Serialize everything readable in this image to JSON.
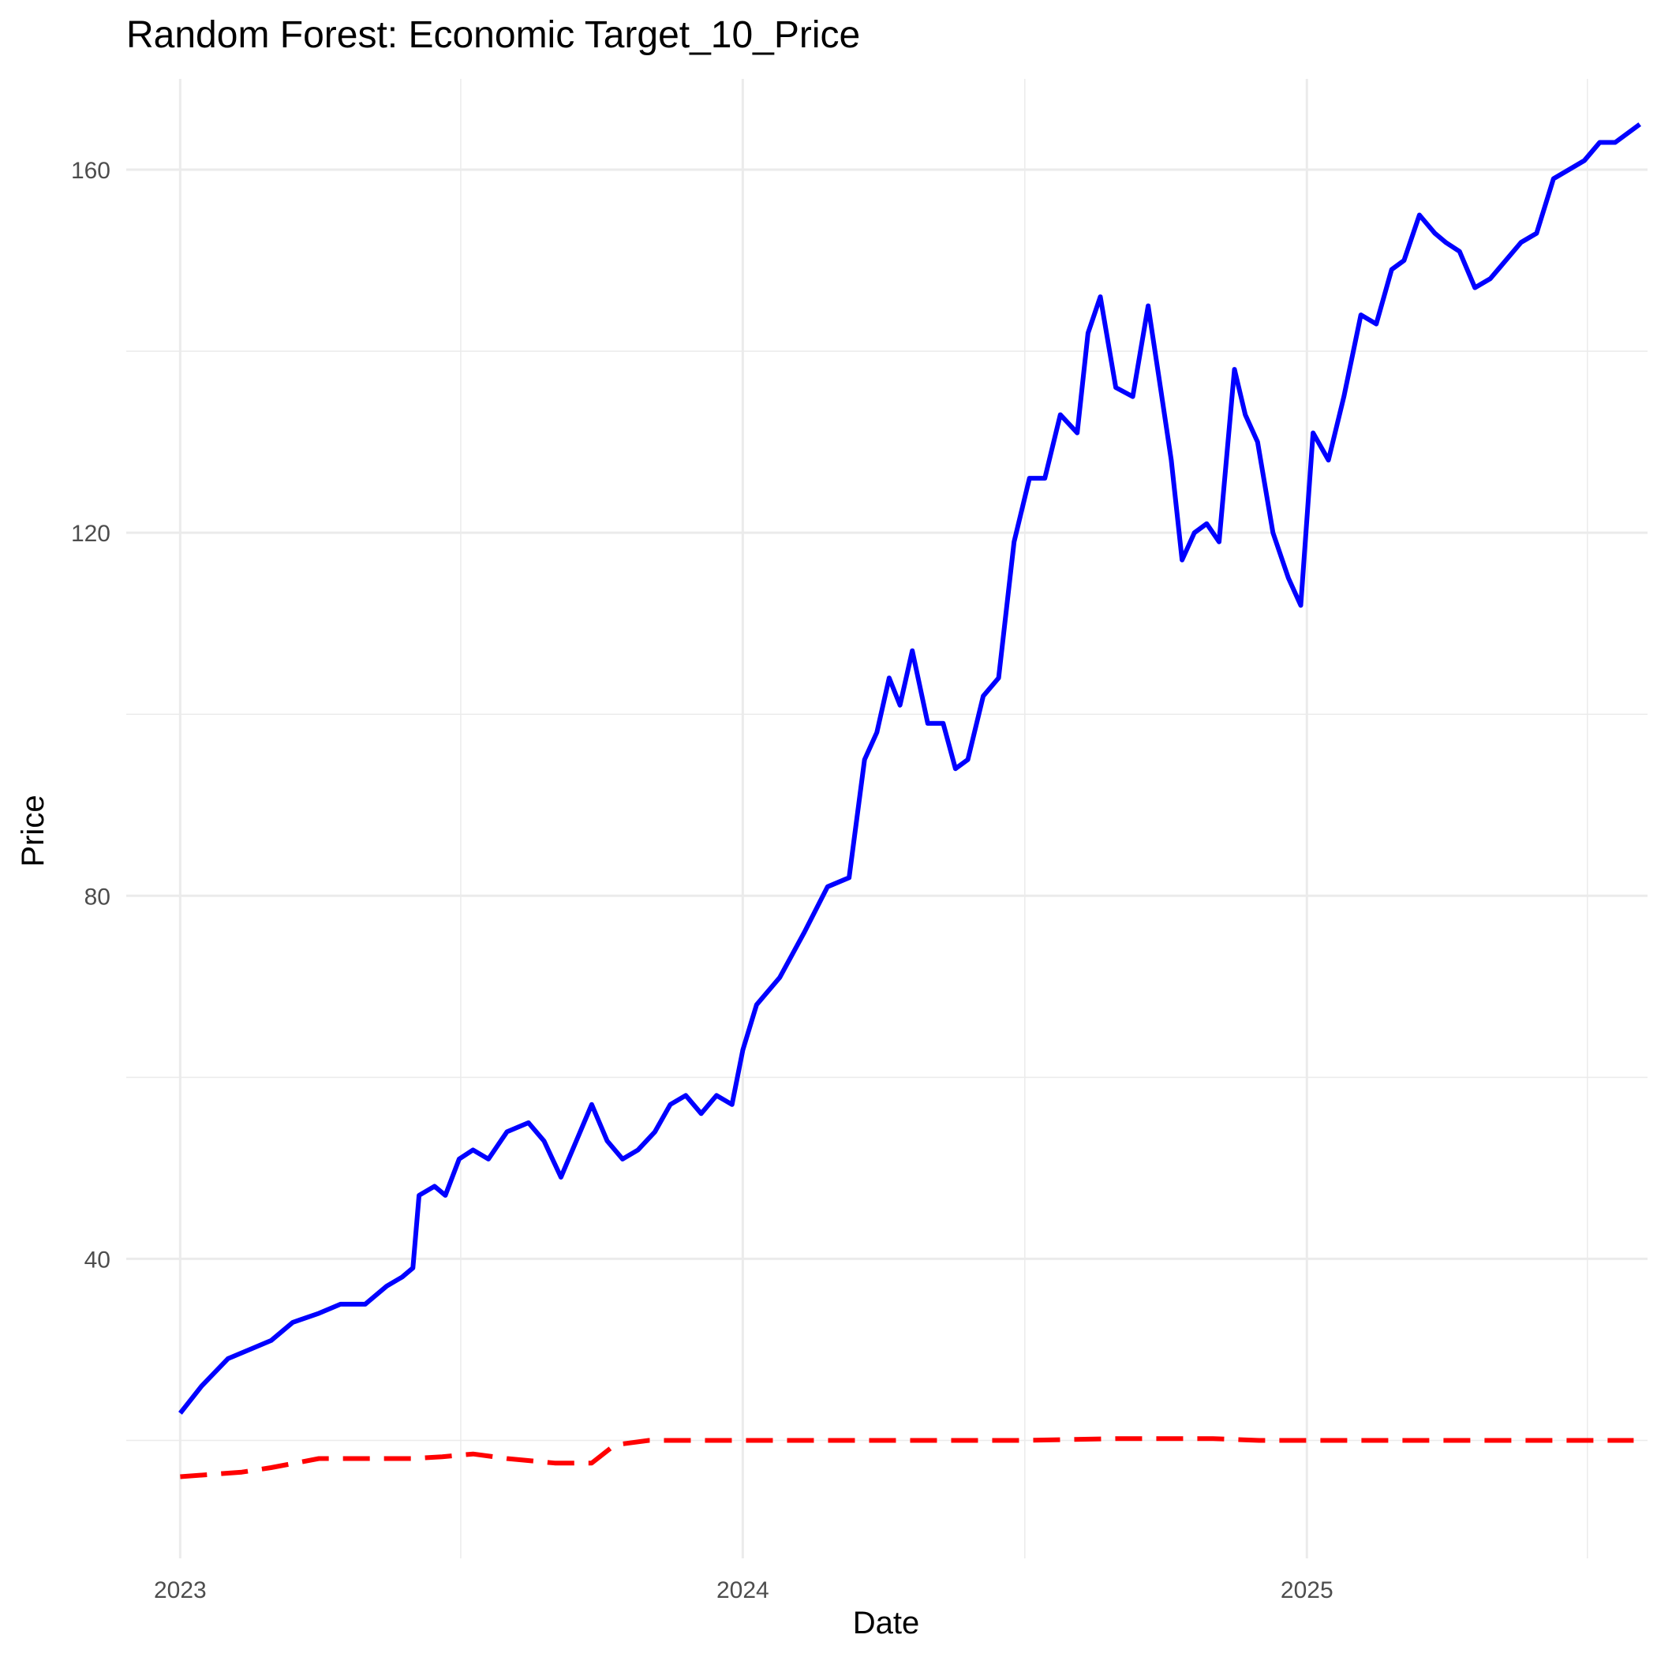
{
  "chart_data": {
    "type": "line",
    "title": "Random Forest: Economic Target_10_Price",
    "xlabel": "Date",
    "ylabel": "Price",
    "x_ticks": [
      "2023",
      "2024",
      "2025"
    ],
    "y_ticks": [
      40,
      80,
      120,
      160
    ],
    "xlim": [
      "2022-11-27",
      "2025-08-10"
    ],
    "ylim": [
      7,
      170
    ],
    "grid": true,
    "legend": "none",
    "series": [
      {
        "color": "#0000ff",
        "style": "solid",
        "points": [
          [
            "2023-01-01",
            23
          ],
          [
            "2023-01-15",
            26
          ],
          [
            "2023-02-01",
            29
          ],
          [
            "2023-02-15",
            30
          ],
          [
            "2023-03-01",
            31
          ],
          [
            "2023-03-15",
            33
          ],
          [
            "2023-04-01",
            34
          ],
          [
            "2023-04-15",
            35
          ],
          [
            "2023-05-01",
            35
          ],
          [
            "2023-05-15",
            37
          ],
          [
            "2023-05-25",
            38
          ],
          [
            "2023-06-01",
            39
          ],
          [
            "2023-06-05",
            47
          ],
          [
            "2023-06-15",
            48
          ],
          [
            "2023-06-22",
            47
          ],
          [
            "2023-07-01",
            51
          ],
          [
            "2023-07-10",
            52
          ],
          [
            "2023-07-20",
            51
          ],
          [
            "2023-08-01",
            54
          ],
          [
            "2023-08-15",
            55
          ],
          [
            "2023-08-25",
            53
          ],
          [
            "2023-09-05",
            49
          ],
          [
            "2023-09-15",
            53
          ],
          [
            "2023-09-25",
            57
          ],
          [
            "2023-10-05",
            53
          ],
          [
            "2023-10-15",
            51
          ],
          [
            "2023-10-25",
            52
          ],
          [
            "2023-11-05",
            54
          ],
          [
            "2023-11-15",
            57
          ],
          [
            "2023-11-25",
            58
          ],
          [
            "2023-12-05",
            56
          ],
          [
            "2023-12-15",
            58
          ],
          [
            "2023-12-25",
            57
          ],
          [
            "2024-01-01",
            63
          ],
          [
            "2024-01-10",
            68
          ],
          [
            "2024-01-25",
            71
          ],
          [
            "2024-02-10",
            76
          ],
          [
            "2024-02-25",
            81
          ],
          [
            "2024-03-10",
            82
          ],
          [
            "2024-03-20",
            95
          ],
          [
            "2024-03-28",
            98
          ],
          [
            "2024-04-05",
            104
          ],
          [
            "2024-04-12",
            101
          ],
          [
            "2024-04-20",
            107
          ],
          [
            "2024-04-30",
            99
          ],
          [
            "2024-05-10",
            99
          ],
          [
            "2024-05-18",
            94
          ],
          [
            "2024-05-26",
            95
          ],
          [
            "2024-06-05",
            102
          ],
          [
            "2024-06-15",
            104
          ],
          [
            "2024-06-25",
            119
          ],
          [
            "2024-07-05",
            126
          ],
          [
            "2024-07-15",
            126
          ],
          [
            "2024-07-25",
            133
          ],
          [
            "2024-08-05",
            131
          ],
          [
            "2024-08-12",
            142
          ],
          [
            "2024-08-20",
            146
          ],
          [
            "2024-08-30",
            136
          ],
          [
            "2024-09-10",
            135
          ],
          [
            "2024-09-20",
            145
          ],
          [
            "2024-09-28",
            136
          ],
          [
            "2024-10-05",
            128
          ],
          [
            "2024-10-12",
            117
          ],
          [
            "2024-10-20",
            120
          ],
          [
            "2024-10-28",
            121
          ],
          [
            "2024-11-05",
            119
          ],
          [
            "2024-11-15",
            138
          ],
          [
            "2024-11-22",
            133
          ],
          [
            "2024-11-30",
            130
          ],
          [
            "2024-12-10",
            120
          ],
          [
            "2024-12-20",
            115
          ],
          [
            "2024-12-28",
            112
          ],
          [
            "2025-01-05",
            131
          ],
          [
            "2025-01-15",
            128
          ],
          [
            "2025-01-25",
            135
          ],
          [
            "2025-02-05",
            144
          ],
          [
            "2025-02-15",
            143
          ],
          [
            "2025-02-25",
            149
          ],
          [
            "2025-03-05",
            150
          ],
          [
            "2025-03-15",
            155
          ],
          [
            "2025-03-25",
            153
          ],
          [
            "2025-04-01",
            152
          ],
          [
            "2025-04-10",
            151
          ],
          [
            "2025-04-20",
            147
          ],
          [
            "2025-04-30",
            148
          ],
          [
            "2025-05-10",
            150
          ],
          [
            "2025-05-20",
            152
          ],
          [
            "2025-05-30",
            153
          ],
          [
            "2025-06-10",
            159
          ],
          [
            "2025-06-20",
            160
          ],
          [
            "2025-06-30",
            161
          ],
          [
            "2025-07-10",
            163
          ],
          [
            "2025-07-20",
            163
          ],
          [
            "2025-07-28",
            164
          ],
          [
            "2025-08-05",
            165
          ]
        ]
      },
      {
        "color": "#ff0000",
        "style": "dashed",
        "points": [
          [
            "2023-01-01",
            16
          ],
          [
            "2023-02-10",
            16.5
          ],
          [
            "2023-03-01",
            17
          ],
          [
            "2023-04-01",
            18
          ],
          [
            "2023-04-15",
            18
          ],
          [
            "2023-05-01",
            18
          ],
          [
            "2023-06-01",
            18
          ],
          [
            "2023-06-20",
            18.2
          ],
          [
            "2023-07-10",
            18.5
          ],
          [
            "2023-08-01",
            18
          ],
          [
            "2023-09-01",
            17.5
          ],
          [
            "2023-09-25",
            17.5
          ],
          [
            "2023-10-10",
            19.5
          ],
          [
            "2023-11-01",
            20
          ],
          [
            "2023-12-01",
            20
          ],
          [
            "2024-01-01",
            20
          ],
          [
            "2024-03-01",
            20
          ],
          [
            "2024-05-01",
            20
          ],
          [
            "2024-07-01",
            20
          ],
          [
            "2024-09-01",
            20.2
          ],
          [
            "2024-11-01",
            20.2
          ],
          [
            "2024-12-01",
            20
          ],
          [
            "2025-01-01",
            20
          ],
          [
            "2025-03-01",
            20
          ],
          [
            "2025-05-01",
            20
          ],
          [
            "2025-08-01",
            20
          ]
        ]
      }
    ]
  }
}
